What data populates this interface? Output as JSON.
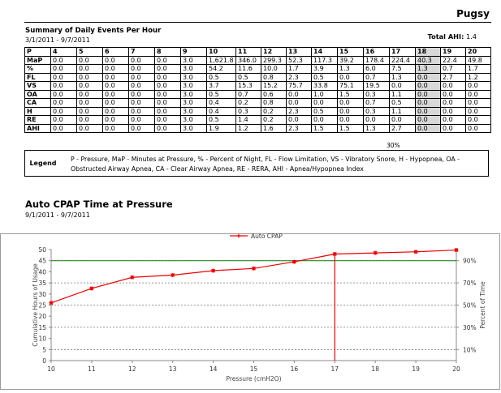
{
  "header": {
    "patient": "Pugsy",
    "summary_title": "Summary of Daily Events Per Hour",
    "summary_dates": "3/1/2011 - 9/7/2011",
    "total_ahi_label": "Total AHI:",
    "total_ahi_value": "1.4"
  },
  "table": {
    "selected_column": 15,
    "rows": [
      [
        "P",
        "4",
        "5",
        "6",
        "7",
        "8",
        "9",
        "10",
        "11",
        "12",
        "13",
        "14",
        "15",
        "16",
        "17",
        "18",
        "19",
        "20"
      ],
      [
        "MaP",
        "0.0",
        "0.0",
        "0.0",
        "0.0",
        "0.0",
        "3.0",
        "1,621.8",
        "346.0",
        "299.3",
        "52.3",
        "117.3",
        "39.2",
        "178.4",
        "224.4",
        "40.3",
        "22.4",
        "49.8"
      ],
      [
        "%",
        "0.0",
        "0.0",
        "0.0",
        "0.0",
        "0.0",
        "3.0",
        "54.2",
        "11.6",
        "10.0",
        "1.7",
        "3.9",
        "1.3",
        "6.0",
        "7.5",
        "1.3",
        "0.7",
        "1.7"
      ],
      [
        "FL",
        "0.0",
        "0.0",
        "0.0",
        "0.0",
        "0.0",
        "3.0",
        "0.5",
        "0.5",
        "0.8",
        "2.3",
        "0.5",
        "0.0",
        "0.7",
        "1.3",
        "0.0",
        "2.7",
        "1.2"
      ],
      [
        "VS",
        "0.0",
        "0.0",
        "0.0",
        "0.0",
        "0.0",
        "3.0",
        "3.7",
        "15.3",
        "15.2",
        "75.7",
        "33.8",
        "75.1",
        "19.5",
        "0.0",
        "0.0",
        "0.0",
        "0.0"
      ],
      [
        "OA",
        "0.0",
        "0.0",
        "0.0",
        "0.0",
        "0.0",
        "3.0",
        "0.5",
        "0.7",
        "0.6",
        "0.0",
        "1.0",
        "1.5",
        "0.3",
        "1.1",
        "0.0",
        "0.0",
        "0.0"
      ],
      [
        "CA",
        "0.0",
        "0.0",
        "0.0",
        "0.0",
        "0.0",
        "3.0",
        "0.4",
        "0.2",
        "0.8",
        "0.0",
        "0.0",
        "0.0",
        "0.7",
        "0.5",
        "0.0",
        "0.0",
        "0.0"
      ],
      [
        "H",
        "0.0",
        "0.0",
        "0.0",
        "0.0",
        "0.0",
        "3.0",
        "0.4",
        "0.3",
        "0.2",
        "2.3",
        "0.5",
        "0.0",
        "0.3",
        "1.1",
        "0.0",
        "0.0",
        "0.0"
      ],
      [
        "RE",
        "0.0",
        "0.0",
        "0.0",
        "0.0",
        "0.0",
        "3.0",
        "0.5",
        "1.4",
        "0.2",
        "0.0",
        "0.0",
        "0.0",
        "0.0",
        "0.0",
        "0.0",
        "0.0",
        "0.0"
      ],
      [
        "AHI",
        "0.0",
        "0.0",
        "0.0",
        "0.0",
        "0.0",
        "3.0",
        "1.9",
        "1.2",
        "1.6",
        "2.3",
        "1.5",
        "1.5",
        "1.3",
        "2.7",
        "0.0",
        "0.0",
        "0.0"
      ]
    ],
    "pct_note": "30%"
  },
  "legend": {
    "label": "Legend",
    "text": "P - Pressure, MaP - Minutes at Pressure, % - Percent of Night, FL - Flow Limitation, VS - Vibratory Snore, H - Hypopnea, OA - Obstructed Airway Apnea, CA - Clear Airway Apnea, RE - RERA, AHI - Apnea/Hypopnea Index"
  },
  "chart_section": {
    "title": "Auto CPAP Time at Pressure",
    "dates": "9/1/2011 - 9/7/2011"
  },
  "chart_data": {
    "type": "line",
    "series": [
      {
        "name": "Auto CPAP",
        "color": "#ee0000",
        "x": [
          10,
          11,
          12,
          13,
          14,
          15,
          16,
          17,
          18,
          19,
          20
        ],
        "values": [
          26.0,
          32.5,
          37.5,
          38.5,
          40.5,
          41.5,
          44.5,
          48.0,
          48.5,
          49.0,
          49.8
        ]
      }
    ],
    "xlim": [
      10,
      20
    ],
    "ylim": [
      0,
      50
    ],
    "xticks": [
      "10",
      "11",
      "12",
      "13",
      "14",
      "15",
      "16",
      "17",
      "18",
      "19",
      "20"
    ],
    "yticks": [
      "0",
      "5",
      "10",
      "15",
      "20",
      "25",
      "30",
      "35",
      "40",
      "45",
      "50"
    ],
    "y2ticks": [
      "10%",
      "30%",
      "50%",
      "70%",
      "90%"
    ],
    "y2_values": [
      5,
      15,
      25,
      35,
      45
    ],
    "xlabel": "Pressure (cmH2O)",
    "ylabel": "Cumulative Hours of Usage",
    "y2label": "Percent of Time",
    "reference_hline_y": 45,
    "reference_vline_x": 17,
    "legend_position": "top-center",
    "grid": "dashed horizontal at 5,15,25,35"
  }
}
